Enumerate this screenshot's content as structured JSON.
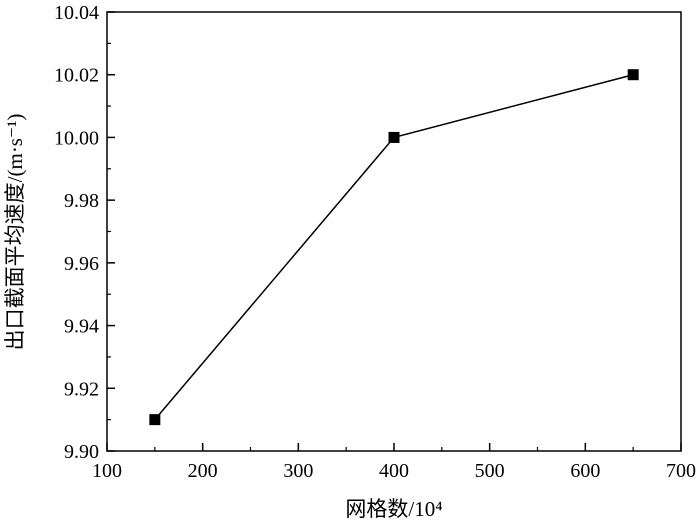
{
  "chart_data": {
    "type": "line",
    "xlabel": "网格数/10⁴",
    "ylabel": "出口截面平均速度/(m·s⁻¹)",
    "xlim": [
      100,
      700
    ],
    "ylim": [
      9.9,
      10.04
    ],
    "x_ticks": [
      "100",
      "200",
      "300",
      "400",
      "500",
      "600",
      "700"
    ],
    "y_ticks": [
      "9.90",
      "9.92",
      "9.94",
      "9.96",
      "9.98",
      "10.00",
      "10.02",
      "10.04"
    ],
    "grid": false,
    "series": [
      {
        "marker": "square",
        "color": "#000000",
        "x": [
          150,
          400,
          650
        ],
        "y": [
          9.91,
          10.0,
          10.02
        ]
      }
    ]
  }
}
